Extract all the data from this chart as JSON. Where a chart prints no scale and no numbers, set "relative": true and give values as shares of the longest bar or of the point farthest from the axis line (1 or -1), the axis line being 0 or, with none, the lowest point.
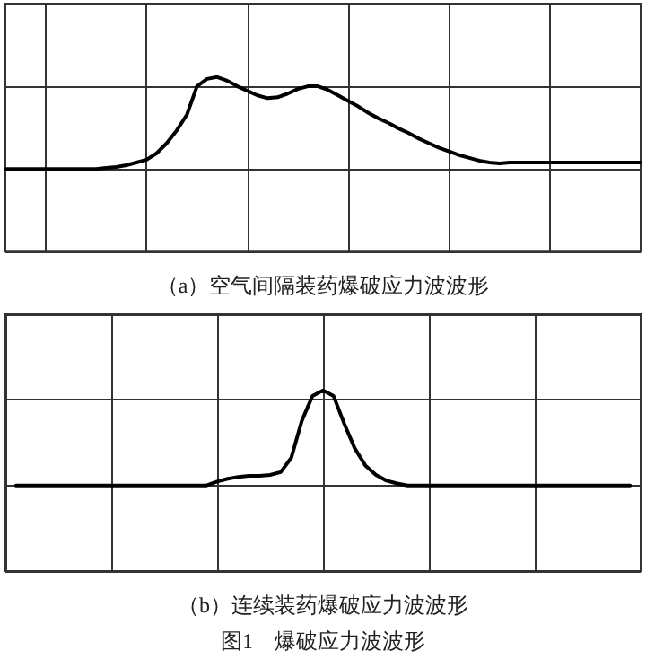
{
  "chart_data": [
    {
      "type": "line",
      "xlabel": "（a）空气间隔装药爆破应力波波形",
      "relative": true,
      "grid": true,
      "line_style": "solid",
      "categories": [
        null,
        null,
        null,
        null,
        null,
        null,
        null,
        null,
        null,
        null,
        null,
        null,
        null,
        null,
        null,
        null,
        null,
        null,
        null,
        null,
        null,
        null,
        null,
        null,
        null,
        null,
        null,
        null,
        null,
        null,
        null,
        null,
        null,
        null,
        null,
        null,
        null,
        null,
        null,
        null,
        null,
        null,
        null,
        null,
        null,
        null,
        null,
        null,
        null,
        null,
        null,
        null,
        null,
        null,
        null,
        null,
        null,
        null,
        null,
        null,
        null,
        null,
        null,
        null
      ],
      "series": [
        {
          "color": "#000000",
          "values": [
            0,
            0,
            0,
            0,
            0,
            0,
            0,
            0,
            0,
            0,
            0.01,
            0.02,
            0.04,
            0.07,
            0.1,
            0.17,
            0.28,
            0.42,
            0.59,
            0.9,
            0.98,
            1.0,
            0.96,
            0.9,
            0.85,
            0.8,
            0.77,
            0.78,
            0.82,
            0.87,
            0.9,
            0.9,
            0.86,
            0.8,
            0.74,
            0.68,
            0.61,
            0.55,
            0.5,
            0.44,
            0.39,
            0.33,
            0.28,
            0.23,
            0.19,
            0.15,
            0.12,
            0.09,
            0.07,
            0.06,
            0.07,
            0.07,
            0.07,
            0.07,
            0.07,
            0.07,
            0.07,
            0.07,
            0.07,
            0.07,
            0.07,
            0.07,
            0.07,
            0.07
          ]
        }
      ]
    },
    {
      "type": "line",
      "xlabel": "（b）连续装药爆破应力波波形",
      "annotations": [
        "图1　爆破应力波波形"
      ],
      "relative": true,
      "grid": true,
      "line_style": "solid",
      "categories": [
        null,
        null,
        null,
        null,
        null,
        null,
        null,
        null,
        null,
        null,
        null,
        null,
        null,
        null,
        null,
        null,
        null,
        null,
        null,
        null,
        null,
        null,
        null,
        null,
        null,
        null,
        null,
        null,
        null,
        null,
        null,
        null,
        null,
        null,
        null,
        null,
        null,
        null,
        null,
        null,
        null,
        null,
        null,
        null,
        null,
        null,
        null,
        null,
        null,
        null,
        null,
        null,
        null,
        null,
        null,
        null,
        null,
        null,
        null,
        null,
        null
      ],
      "series": [
        {
          "color": "#000000",
          "values": [
            null,
            0,
            0,
            0,
            0,
            0,
            0,
            0,
            0,
            0,
            0,
            0,
            0,
            0,
            0,
            0,
            0,
            0,
            0,
            0,
            0.04,
            0.07,
            0.09,
            0.1,
            0.1,
            0.11,
            0.14,
            0.29,
            0.68,
            0.94,
            1.0,
            0.94,
            0.65,
            0.39,
            0.21,
            0.11,
            0.05,
            0.02,
            0,
            0,
            0,
            0,
            0,
            0,
            0,
            0,
            0,
            0,
            0,
            0,
            0,
            0,
            0,
            0,
            0,
            0,
            0,
            0,
            0,
            0,
            null
          ]
        }
      ]
    }
  ]
}
